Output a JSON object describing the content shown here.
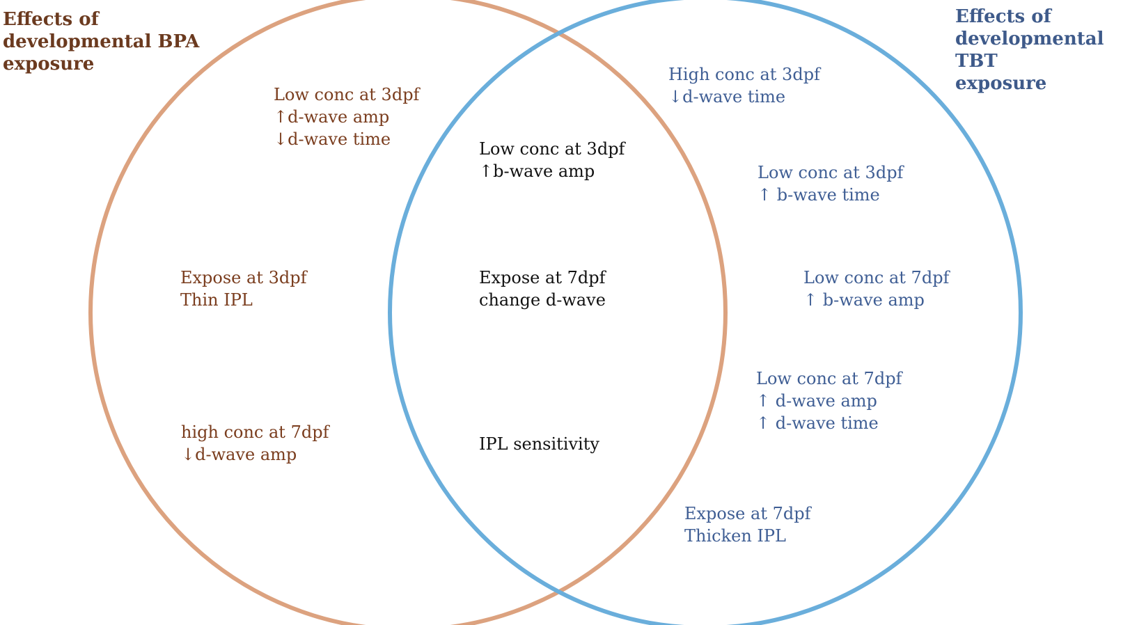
{
  "colors": {
    "bpa_circle": "#dca27f",
    "tbt_circle": "#6aaedb",
    "bpa_text": "#7a3d1e",
    "bpa_title": "#6b3a1f",
    "tbt_text": "#3f5e94",
    "tbt_title": "#3e5a8a",
    "overlap_text": "#111111"
  },
  "sets": {
    "bpa": {
      "title": "Effects of\ndevelopmental BPA\nexposure",
      "items": [
        {
          "lines": [
            "Low conc at 3dpf",
            "↑d-wave amp",
            "↓d-wave time"
          ]
        },
        {
          "lines": [
            "Expose at 3dpf",
            "Thin IPL"
          ]
        },
        {
          "lines": [
            "high conc at 7dpf",
            "↓d-wave amp"
          ]
        }
      ]
    },
    "overlap": {
      "items": [
        {
          "lines": [
            "Low conc at 3dpf",
            "↑b-wave amp"
          ]
        },
        {
          "lines": [
            "Expose at 7dpf",
            "change d-wave"
          ]
        },
        {
          "lines": [
            "IPL sensitivity"
          ]
        }
      ]
    },
    "tbt": {
      "title": "Effects of\ndevelopmental TBT\nexposure",
      "items": [
        {
          "lines": [
            "High conc at 3dpf",
            "↓d-wave time"
          ]
        },
        {
          "lines": [
            "Low conc at 3dpf",
            "↑ b-wave time"
          ]
        },
        {
          "lines": [
            "Low conc at 7dpf",
            "↑ b-wave amp"
          ]
        },
        {
          "lines": [
            "Low conc at 7dpf",
            "↑ d-wave amp",
            "↑ d-wave time"
          ]
        },
        {
          "lines": [
            "Expose at 7dpf",
            "Thicken IPL"
          ]
        }
      ]
    }
  }
}
